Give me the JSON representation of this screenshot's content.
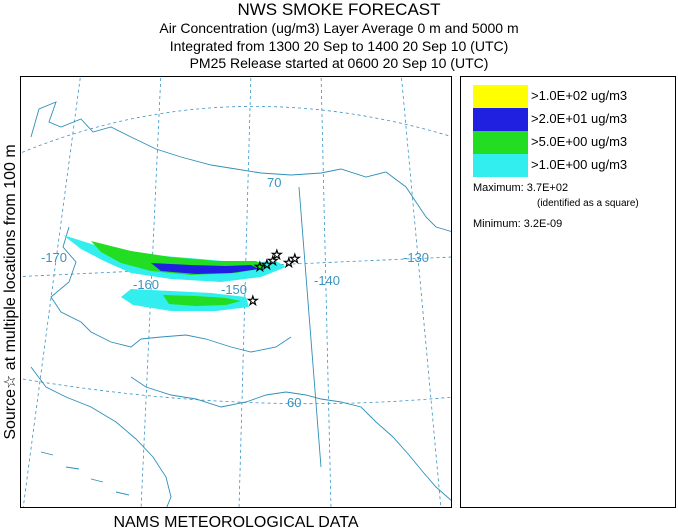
{
  "header": {
    "title": "NWS SMOKE FORECAST",
    "line1": "Air Concentration (ug/m3) Layer Average    0 m and  5000 m",
    "line2": "Integrated from 1300 20 Sep to 1400 20 Sep 10 (UTC)",
    "line3": "PM25 Release started at 0600 20 Sep 10 (UTC)"
  },
  "side_label": "Source☆ at multiple locations  from   100 m",
  "footer": "NAMS METEOROLOGICAL DATA",
  "map": {
    "graticule_labels": {
      "lon_170": "-170",
      "lon_160": "-160",
      "lon_150": "-150",
      "lon_140": "-140",
      "lon_130": "-130",
      "lat_70": "70",
      "lat_60": "60"
    },
    "colors": {
      "coast": "#2f8fb8",
      "graticule": "#3a93c4",
      "level_1": "#ffff00",
      "level_2": "#2020e0",
      "level_3": "#22dd22",
      "level_4": "#33eeee",
      "source_marker": "star"
    }
  },
  "legend": {
    "items": [
      {
        "label": ">1.0E+02 ug/m3",
        "color": "#ffff00"
      },
      {
        "label": ">2.0E+01 ug/m3",
        "color": "#2020e0"
      },
      {
        "label": ">5.0E+00 ug/m3",
        "color": "#22dd22"
      },
      {
        "label": ">1.0E+00 ug/m3",
        "color": "#33eeee"
      }
    ],
    "maximum": "Maximum: 3.7E+02",
    "maximum_note": "(identified as a square)",
    "minimum": "Minimum: 3.2E-09"
  }
}
